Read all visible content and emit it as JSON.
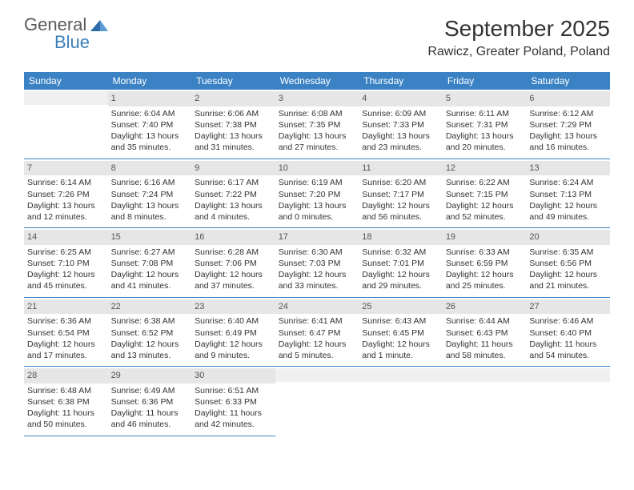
{
  "logo": {
    "general": "General",
    "blue": "Blue"
  },
  "header": {
    "monthTitle": "September 2025",
    "location": "Rawicz, Greater Poland, Poland"
  },
  "colors": {
    "headerBar": "#3b82c4",
    "dayNumBg": "#e6e6e6",
    "text": "#333333",
    "logoBlue": "#3b7fb8"
  },
  "dayNames": [
    "Sunday",
    "Monday",
    "Tuesday",
    "Wednesday",
    "Thursday",
    "Friday",
    "Saturday"
  ],
  "weeks": [
    [
      null,
      {
        "n": "1",
        "sr": "6:04 AM",
        "ss": "7:40 PM",
        "dl": "13 hours and 35 minutes."
      },
      {
        "n": "2",
        "sr": "6:06 AM",
        "ss": "7:38 PM",
        "dl": "13 hours and 31 minutes."
      },
      {
        "n": "3",
        "sr": "6:08 AM",
        "ss": "7:35 PM",
        "dl": "13 hours and 27 minutes."
      },
      {
        "n": "4",
        "sr": "6:09 AM",
        "ss": "7:33 PM",
        "dl": "13 hours and 23 minutes."
      },
      {
        "n": "5",
        "sr": "6:11 AM",
        "ss": "7:31 PM",
        "dl": "13 hours and 20 minutes."
      },
      {
        "n": "6",
        "sr": "6:12 AM",
        "ss": "7:29 PM",
        "dl": "13 hours and 16 minutes."
      }
    ],
    [
      {
        "n": "7",
        "sr": "6:14 AM",
        "ss": "7:26 PM",
        "dl": "13 hours and 12 minutes."
      },
      {
        "n": "8",
        "sr": "6:16 AM",
        "ss": "7:24 PM",
        "dl": "13 hours and 8 minutes."
      },
      {
        "n": "9",
        "sr": "6:17 AM",
        "ss": "7:22 PM",
        "dl": "13 hours and 4 minutes."
      },
      {
        "n": "10",
        "sr": "6:19 AM",
        "ss": "7:20 PM",
        "dl": "13 hours and 0 minutes."
      },
      {
        "n": "11",
        "sr": "6:20 AM",
        "ss": "7:17 PM",
        "dl": "12 hours and 56 minutes."
      },
      {
        "n": "12",
        "sr": "6:22 AM",
        "ss": "7:15 PM",
        "dl": "12 hours and 52 minutes."
      },
      {
        "n": "13",
        "sr": "6:24 AM",
        "ss": "7:13 PM",
        "dl": "12 hours and 49 minutes."
      }
    ],
    [
      {
        "n": "14",
        "sr": "6:25 AM",
        "ss": "7:10 PM",
        "dl": "12 hours and 45 minutes."
      },
      {
        "n": "15",
        "sr": "6:27 AM",
        "ss": "7:08 PM",
        "dl": "12 hours and 41 minutes."
      },
      {
        "n": "16",
        "sr": "6:28 AM",
        "ss": "7:06 PM",
        "dl": "12 hours and 37 minutes."
      },
      {
        "n": "17",
        "sr": "6:30 AM",
        "ss": "7:03 PM",
        "dl": "12 hours and 33 minutes."
      },
      {
        "n": "18",
        "sr": "6:32 AM",
        "ss": "7:01 PM",
        "dl": "12 hours and 29 minutes."
      },
      {
        "n": "19",
        "sr": "6:33 AM",
        "ss": "6:59 PM",
        "dl": "12 hours and 25 minutes."
      },
      {
        "n": "20",
        "sr": "6:35 AM",
        "ss": "6:56 PM",
        "dl": "12 hours and 21 minutes."
      }
    ],
    [
      {
        "n": "21",
        "sr": "6:36 AM",
        "ss": "6:54 PM",
        "dl": "12 hours and 17 minutes."
      },
      {
        "n": "22",
        "sr": "6:38 AM",
        "ss": "6:52 PM",
        "dl": "12 hours and 13 minutes."
      },
      {
        "n": "23",
        "sr": "6:40 AM",
        "ss": "6:49 PM",
        "dl": "12 hours and 9 minutes."
      },
      {
        "n": "24",
        "sr": "6:41 AM",
        "ss": "6:47 PM",
        "dl": "12 hours and 5 minutes."
      },
      {
        "n": "25",
        "sr": "6:43 AM",
        "ss": "6:45 PM",
        "dl": "12 hours and 1 minute."
      },
      {
        "n": "26",
        "sr": "6:44 AM",
        "ss": "6:43 PM",
        "dl": "11 hours and 58 minutes."
      },
      {
        "n": "27",
        "sr": "6:46 AM",
        "ss": "6:40 PM",
        "dl": "11 hours and 54 minutes."
      }
    ],
    [
      {
        "n": "28",
        "sr": "6:48 AM",
        "ss": "6:38 PM",
        "dl": "11 hours and 50 minutes."
      },
      {
        "n": "29",
        "sr": "6:49 AM",
        "ss": "6:36 PM",
        "dl": "11 hours and 46 minutes."
      },
      {
        "n": "30",
        "sr": "6:51 AM",
        "ss": "6:33 PM",
        "dl": "11 hours and 42 minutes."
      },
      null,
      null,
      null,
      null
    ]
  ],
  "labels": {
    "sunrise": "Sunrise: ",
    "sunset": "Sunset: ",
    "daylight": "Daylight: "
  }
}
